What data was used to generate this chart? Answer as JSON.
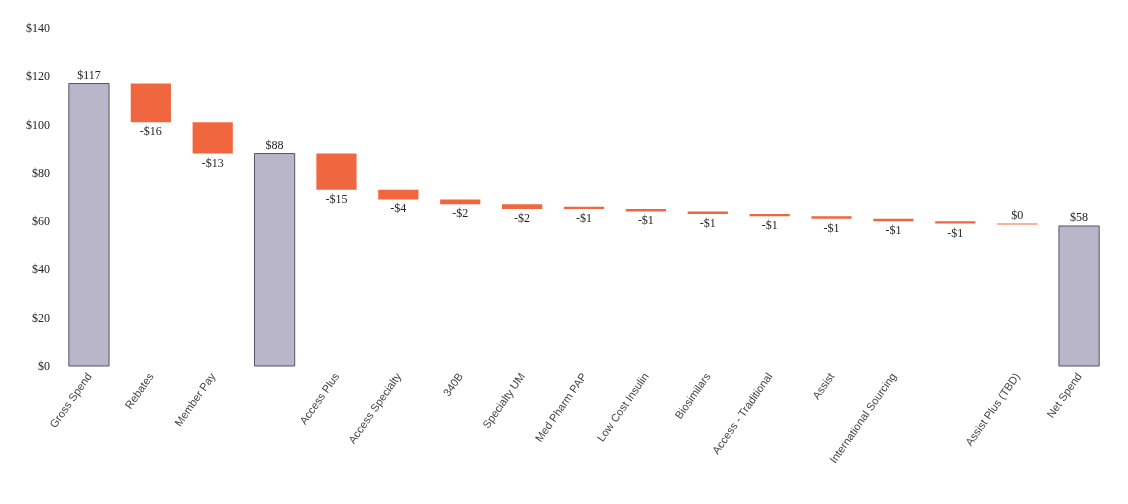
{
  "chart_data": {
    "type": "bar",
    "categories": [
      "Gross Spend",
      "Rebates",
      "Member Pay",
      null,
      "Access Plus",
      "Access Specialty",
      "340B",
      "Specialty UM",
      "Med Pharm PAP",
      "Low Cost Insulin",
      "Biosimilars",
      "Access - Traditional",
      "Assist",
      "International Sourcing",
      null,
      "Assist Plus (TBD)",
      "Net Spend"
    ],
    "values": [
      117,
      -16,
      -13,
      88,
      -15,
      -4,
      -2,
      -2,
      -1,
      -1,
      -1,
      -1,
      -1,
      -1,
      -1,
      0,
      58
    ],
    "base": [
      0,
      117,
      101,
      0,
      88,
      73,
      69,
      67,
      66,
      65,
      64,
      63,
      62,
      61,
      60,
      59,
      0
    ],
    "colors": [
      "#b9b6c9",
      "#f0663e",
      "#f0663e",
      "#b9b6c9",
      "#f0663e",
      "#f0663e",
      "#f0663e",
      "#f0663e",
      "#f0663e",
      "#f0663e",
      "#f0663e",
      "#f0663e",
      "#f0663e",
      "#f0663e",
      "#f0663e",
      "#f0663e",
      "#b9b6c9"
    ],
    "value_labels": [
      "$117",
      "-$16",
      "-$13",
      "$88",
      "-$15",
      "-$4",
      "-$2",
      "-$2",
      "-$1",
      "-$1",
      "-$1",
      "-$1",
      "-$1",
      "-$1",
      "-$1",
      "$0",
      "$58"
    ],
    "ylim": [
      0,
      140
    ],
    "yticks": [
      {
        "value": 0,
        "label": "$0"
      },
      {
        "value": 20,
        "label": "$20"
      },
      {
        "value": 40,
        "label": "$40"
      },
      {
        "value": 60,
        "label": "$60"
      },
      {
        "value": 80,
        "label": "$80"
      },
      {
        "value": 100,
        "label": "$100"
      },
      {
        "value": 120,
        "label": "$120"
      },
      {
        "value": 140,
        "label": "$140"
      }
    ],
    "grid": false
  }
}
